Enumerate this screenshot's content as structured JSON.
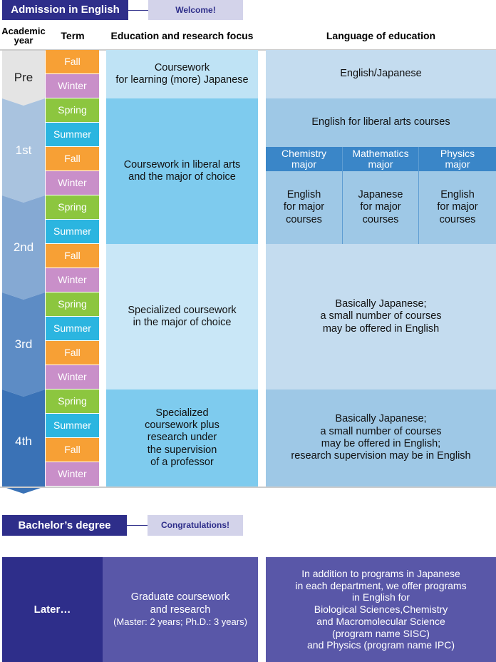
{
  "header": {
    "title": "Admission in English",
    "badge": "Welcome!"
  },
  "columns": [
    [
      "Academic",
      "year"
    ],
    [
      "Term"
    ],
    [
      "Education and research focus"
    ],
    [
      "Language of education"
    ]
  ],
  "years": [
    {
      "label": "Pre",
      "terms": [
        "Fall",
        "Winter"
      ]
    },
    {
      "label": "1st",
      "terms": [
        "Spring",
        "Summer",
        "Fall",
        "Winter"
      ]
    },
    {
      "label": "2nd",
      "terms": [
        "Spring",
        "Summer",
        "Fall",
        "Winter"
      ]
    },
    {
      "label": "3rd",
      "terms": [
        "Spring",
        "Summer",
        "Fall",
        "Winter"
      ]
    },
    {
      "label": "4th",
      "terms": [
        "Spring",
        "Summer",
        "Fall",
        "Winter"
      ]
    }
  ],
  "focus": [
    [
      "Coursework",
      "for learning (more) Japanese"
    ],
    [
      "Coursework in liberal arts",
      "and the major of choice"
    ],
    [
      "Specialized coursework",
      "in the major of choice"
    ],
    [
      "Specialized",
      "coursework plus",
      "research under",
      "the supervision",
      "of a professor"
    ]
  ],
  "language": {
    "pre": [
      "English/Japanese"
    ],
    "liberal_arts": [
      "English for liberal arts courses"
    ],
    "majors": [
      {
        "name": [
          "Chemistry",
          "major"
        ],
        "language": [
          "English",
          "for major",
          "courses"
        ]
      },
      {
        "name": [
          "Mathematics",
          "major"
        ],
        "language": [
          "Japanese",
          "for major",
          "courses"
        ]
      },
      {
        "name": [
          "Physics",
          "major"
        ],
        "language": [
          "English",
          "for major",
          "courses"
        ]
      }
    ],
    "basic": [
      "Basically Japanese;",
      "a small number of courses",
      "may be offered in English"
    ],
    "fourth": [
      "Basically Japanese;",
      "a small number of courses",
      "may be offered in English;",
      "research supervision may be in English"
    ]
  },
  "degree": {
    "title": "Bachelor’s degree",
    "badge": "Congratulations!"
  },
  "later": {
    "label": "Later…",
    "focus": [
      "Graduate coursework",
      "and research"
    ],
    "duration": "(Master: 2 years; Ph.D.: 3 years)",
    "programs": [
      "In addition to programs in Japanese",
      "in each department, we offer programs",
      "in English for",
      "Biological Sciences,Chemistry",
      "and Macromolecular Science",
      "(program name SISC)",
      "and Physics (program name IPC)"
    ]
  }
}
